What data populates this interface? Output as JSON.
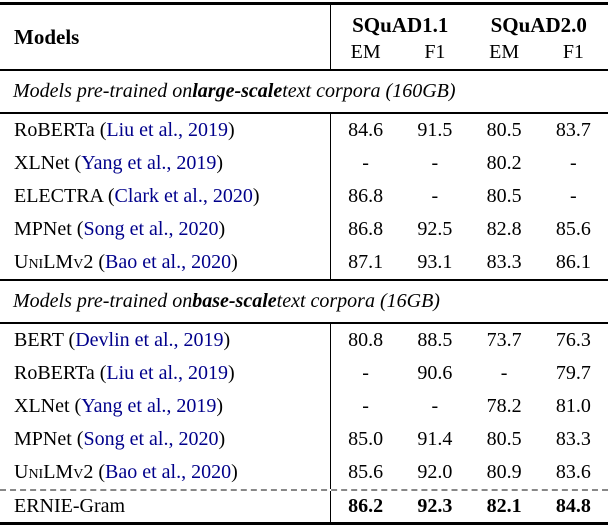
{
  "table": {
    "colors": {
      "citation": "#00008B",
      "dashed_rule": "#888888",
      "rule": "#000000"
    },
    "header": {
      "models_label": "Models",
      "group1": "SQuAD1.1",
      "group2": "SQuAD2.0",
      "subcols": [
        "EM",
        "F1",
        "EM",
        "F1"
      ]
    },
    "sections": [
      {
        "caption": {
          "prefix": "Models pre-trained on ",
          "bold": "large-scale",
          "suffix": " text corpora (160GB)"
        },
        "rows": [
          {
            "prefix": "RoBERTa (",
            "citation": "Liu et al., 2019",
            "suffix": ")",
            "values": [
              "84.6",
              "91.5",
              "80.5",
              "83.7"
            ]
          },
          {
            "prefix": "XLNet (",
            "citation": "Yang et al., 2019",
            "suffix": ")",
            "values": [
              "-",
              "-",
              "80.2",
              "-"
            ]
          },
          {
            "prefix": "ELECTRA (",
            "citation": "Clark et al., 2020",
            "suffix": ")",
            "values": [
              "86.8",
              "-",
              "80.5",
              "-"
            ]
          },
          {
            "prefix": "MPNet (",
            "citation": "Song et al., 2020",
            "suffix": ")",
            "values": [
              "86.8",
              "92.5",
              "82.8",
              "85.6"
            ]
          },
          {
            "prefix": "UniLMv2 (",
            "citation": "Bao et al., 2020",
            "suffix": ")",
            "smallcaps": true,
            "values": [
              "87.1",
              "93.1",
              "83.3",
              "86.1"
            ]
          }
        ]
      },
      {
        "caption": {
          "prefix": "Models pre-trained on ",
          "bold": "base-scale",
          "suffix": " text corpora (16GB)"
        },
        "rows": [
          {
            "prefix": "BERT (",
            "citation": "Devlin et al., 2019",
            "suffix": ")",
            "values": [
              "80.8",
              "88.5",
              "73.7",
              "76.3"
            ]
          },
          {
            "prefix": "RoBERTa (",
            "citation": "Liu et al., 2019",
            "suffix": ")",
            "values": [
              "-",
              "90.6",
              "-",
              "79.7"
            ]
          },
          {
            "prefix": "XLNet (",
            "citation": "Yang et al., 2019",
            "suffix": ")",
            "values": [
              "-",
              "-",
              "78.2",
              "81.0"
            ]
          },
          {
            "prefix": "MPNet (",
            "citation": "Song et al., 2020",
            "suffix": ")",
            "values": [
              "85.0",
              "91.4",
              "80.5",
              "83.3"
            ]
          },
          {
            "prefix": "UniLMv2 (",
            "citation": "Bao et al., 2020",
            "suffix": ")",
            "smallcaps": true,
            "values": [
              "85.6",
              "92.0",
              "80.9",
              "83.6"
            ]
          }
        ]
      }
    ],
    "result_row": {
      "label": "ERNIE-Gram",
      "values": [
        "86.2",
        "92.3",
        "82.1",
        "84.8"
      ]
    }
  }
}
